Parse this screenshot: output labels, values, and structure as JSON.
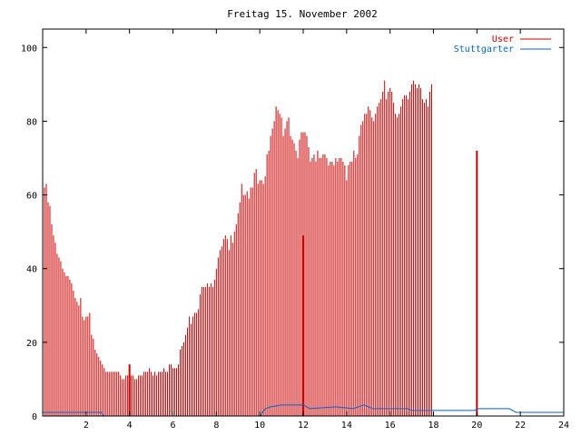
{
  "chart_data": {
    "type": "bar",
    "title": "Freitag 15. November 2002",
    "xlabel": "",
    "ylabel": "",
    "xlim": [
      0,
      24
    ],
    "ylim": [
      0,
      105
    ],
    "x_ticks": [
      2,
      4,
      6,
      8,
      10,
      12,
      14,
      16,
      18,
      20,
      22,
      24
    ],
    "y_ticks": [
      0,
      20,
      40,
      60,
      80,
      100
    ],
    "grid": false,
    "legend_position": "top-right",
    "series": [
      {
        "name": "User",
        "color": "#cc0000",
        "style": "impulses",
        "x_step_hours": 0.083333,
        "values": [
          66,
          62,
          63,
          58,
          57,
          52,
          49,
          47,
          44,
          43,
          42,
          40,
          39,
          38,
          38,
          37,
          36,
          34,
          32,
          31,
          30,
          32,
          27,
          26,
          27,
          27,
          28,
          22,
          21,
          18,
          17,
          16,
          15,
          14,
          13,
          12,
          12,
          12,
          12,
          12,
          12,
          12,
          12,
          11,
          10,
          10,
          11,
          11,
          11,
          11,
          11,
          10,
          10,
          11,
          11,
          11,
          12,
          12,
          12,
          13,
          12,
          11,
          12,
          11,
          12,
          12,
          12,
          13,
          12,
          12,
          14,
          14,
          13,
          13,
          13,
          14,
          18,
          19,
          20,
          22,
          24,
          27,
          25,
          27,
          28,
          28,
          29,
          33,
          35,
          35,
          35,
          36,
          35,
          36,
          35,
          37,
          40,
          43,
          45,
          46,
          48,
          49,
          48,
          45,
          49,
          47,
          50,
          52,
          55,
          58,
          63,
          60,
          60,
          61,
          59,
          62,
          62,
          66,
          67,
          63,
          64,
          64,
          63,
          65,
          71,
          72,
          76,
          78,
          80,
          84,
          83,
          82,
          81,
          76,
          78,
          80,
          81,
          76,
          75,
          74,
          72,
          70,
          75,
          77,
          77,
          77,
          76,
          73,
          69,
          70,
          71,
          69,
          72,
          70,
          70,
          71,
          71,
          70,
          68,
          69,
          69,
          68,
          70,
          69,
          70,
          70,
          69,
          68,
          64,
          68,
          69,
          69,
          72,
          70,
          71,
          76,
          79,
          80,
          82,
          82,
          84,
          83,
          81,
          80,
          82,
          84,
          85,
          86,
          88,
          91,
          86,
          88,
          89,
          88,
          85,
          82,
          81,
          82,
          84,
          86,
          87,
          87,
          86,
          88,
          90,
          91,
          90,
          89,
          90,
          89,
          86,
          85,
          86,
          84,
          88,
          90
        ]
      },
      {
        "name": "Stuttgarter",
        "color": "#0066cc",
        "style": "lines",
        "points": [
          [
            0,
            1
          ],
          [
            2.7,
            1
          ],
          [
            2.8,
            0
          ],
          [
            10.0,
            0
          ],
          [
            10.25,
            2
          ],
          [
            10.5,
            2.5
          ],
          [
            11.0,
            3
          ],
          [
            12.0,
            3
          ],
          [
            12.3,
            2
          ],
          [
            13.5,
            2.5
          ],
          [
            14.3,
            2
          ],
          [
            14.8,
            3
          ],
          [
            15.2,
            2
          ],
          [
            16.8,
            2
          ],
          [
            17.0,
            1.5
          ],
          [
            19.9,
            1.5
          ],
          [
            20.0,
            2
          ],
          [
            21.5,
            2
          ],
          [
            21.8,
            1
          ],
          [
            24,
            1
          ]
        ]
      }
    ],
    "peak_markers": [
      {
        "x": 4.0,
        "value": 14
      },
      {
        "x": 12.0,
        "value": 49
      },
      {
        "x": 20.0,
        "value": 72
      }
    ]
  }
}
